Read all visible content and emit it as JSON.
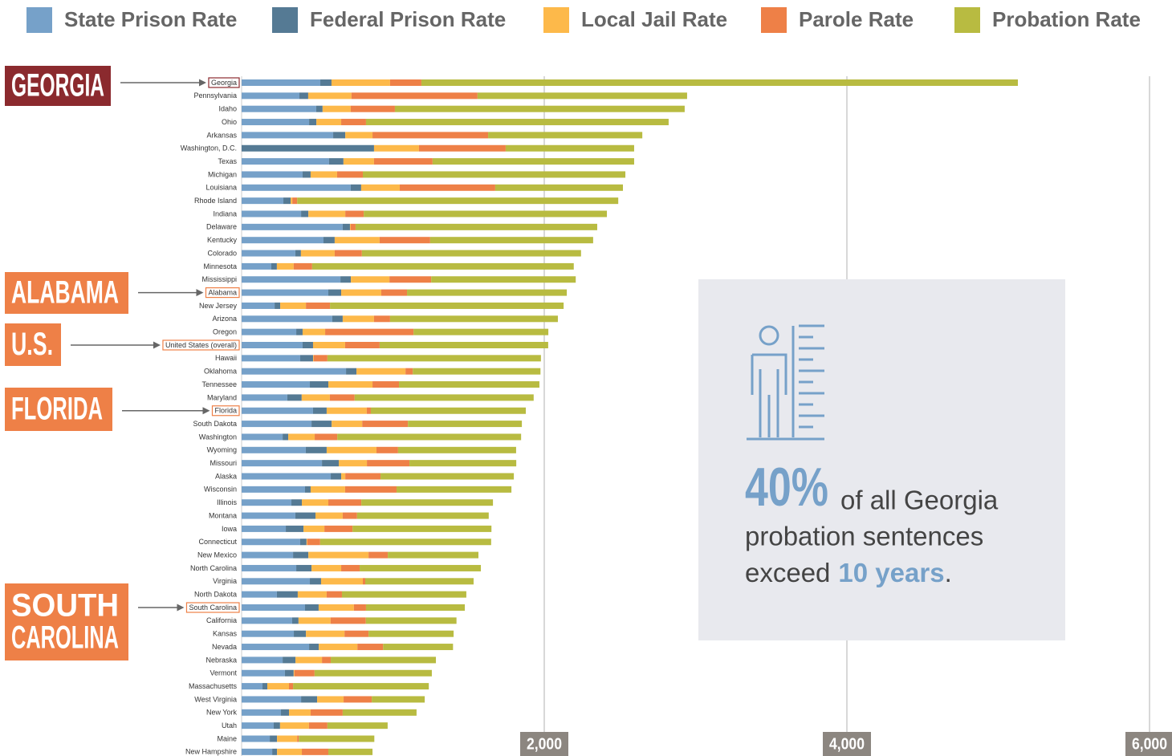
{
  "chart_data": {
    "type": "stacked-barh",
    "categories": [
      "Georgia",
      "Pennsylvania",
      "Idaho",
      "Ohio",
      "Arkansas",
      "Washington, D.C.",
      "Texas",
      "Michigan",
      "Louisiana",
      "Rhode Island",
      "Indiana",
      "Delaware",
      "Kentucky",
      "Colorado",
      "Minnesota",
      "Mississippi",
      "Alabama",
      "New Jersey",
      "Arizona",
      "Oregon",
      "United States (overall)",
      "Hawaii",
      "Oklahoma",
      "Tennessee",
      "Maryland",
      "Florida",
      "South Dakota",
      "Washington",
      "Wyoming",
      "Missouri",
      "Alaska",
      "Wisconsin",
      "Illinois",
      "Montana",
      "Iowa",
      "Connecticut",
      "New Mexico",
      "North Carolina",
      "Virginia",
      "North Dakota",
      "South Carolina",
      "California",
      "Kansas",
      "Nevada",
      "Nebraska",
      "Vermont",
      "Massachusetts",
      "West Virginia",
      "New York",
      "Utah",
      "Maine",
      "New Hampshire"
    ],
    "series": [
      {
        "name": "State Prison Rate",
        "color": "#76a1c9",
        "values": [
          520,
          382,
          493,
          446,
          605,
          0,
          578,
          403,
          721,
          276,
          393,
          668,
          541,
          355,
          196,
          653,
          573,
          218,
          599,
          361,
          403,
          387,
          690,
          451,
          302,
          472,
          462,
          271,
          424,
          531,
          589,
          419,
          329,
          355,
          292,
          387,
          340,
          361,
          451,
          233,
          419,
          334,
          345,
          446,
          271,
          286,
          138,
          393,
          260,
          212,
          186,
          202
        ]
      },
      {
        "name": "Federal Prison Rate",
        "color": "#557a94",
        "values": [
          74,
          58,
          42,
          48,
          80,
          875,
          95,
          53,
          69,
          48,
          48,
          48,
          74,
          37,
          37,
          69,
          85,
          37,
          69,
          42,
          69,
          85,
          69,
          122,
          95,
          90,
          133,
          37,
          138,
          111,
          69,
          37,
          69,
          133,
          117,
          42,
          101,
          101,
          74,
          138,
          90,
          42,
          80,
          64,
          85,
          58,
          32,
          106,
          53,
          42,
          48,
          32
        ]
      },
      {
        "name": "Local Jail Rate",
        "color": "#fdb94a",
        "values": [
          387,
          286,
          186,
          164,
          180,
          297,
          202,
          175,
          255,
          11,
          244,
          5,
          297,
          223,
          111,
          255,
          265,
          170,
          207,
          149,
          212,
          5,
          324,
          292,
          186,
          265,
          202,
          175,
          329,
          186,
          27,
          228,
          175,
          180,
          138,
          5,
          398,
          196,
          276,
          191,
          233,
          212,
          255,
          255,
          175,
          5,
          143,
          175,
          143,
          191,
          133,
          164
        ]
      },
      {
        "name": "Parole Rate",
        "color": "#ee8047",
        "values": [
          207,
          833,
          292,
          164,
          764,
          573,
          387,
          170,
          631,
          32,
          122,
          32,
          334,
          180,
          122,
          276,
          170,
          159,
          106,
          584,
          228,
          90,
          48,
          175,
          164,
          27,
          302,
          149,
          143,
          281,
          233,
          340,
          218,
          95,
          186,
          85,
          127,
          122,
          16,
          101,
          80,
          233,
          159,
          170,
          58,
          133,
          27,
          186,
          212,
          122,
          11,
          175
        ]
      },
      {
        "name": "Probation Rate",
        "color": "#b8bb41",
        "values": [
          3942,
          1385,
          1915,
          2000,
          1019,
          849,
          1332,
          1735,
          844,
          2122,
          1607,
          1597,
          1077,
          1448,
          1729,
          955,
          1056,
          1544,
          1109,
          891,
          1114,
          1411,
          844,
          928,
          1183,
          1024,
          753,
          1215,
          780,
          706,
          881,
          759,
          870,
          870,
          918,
          1130,
          599,
          801,
          716,
          822,
          653,
          599,
          562,
          462,
          695,
          775,
          897,
          350,
          488,
          398,
          499,
          292
        ]
      }
    ],
    "xlim": [
      0,
      6000
    ],
    "xticks": [
      {
        "value": 2000,
        "label": "2,000"
      },
      {
        "value": 4000,
        "label": "4,000"
      },
      {
        "value": 6000,
        "label": "6,000"
      }
    ],
    "grid": true,
    "callouts": [
      {
        "lines": [
          "GEORGIA"
        ],
        "color": "#8b2a2e"
      },
      {
        "lines": [
          "ALABAMA"
        ],
        "color": "#ee8047"
      },
      {
        "lines": [
          "U.S."
        ],
        "color": "#ee8047"
      },
      {
        "lines": [
          "FLORIDA"
        ],
        "color": "#ee8047"
      },
      {
        "lines": [
          "SOUTH",
          "CAROLINA"
        ],
        "color": "#ee8047"
      }
    ],
    "infobox": {
      "stat": "40%",
      "line1": "of all Georgia",
      "line2": "probation sentences",
      "line3": "exceed",
      "highlight": "10 years",
      "end": "."
    }
  }
}
